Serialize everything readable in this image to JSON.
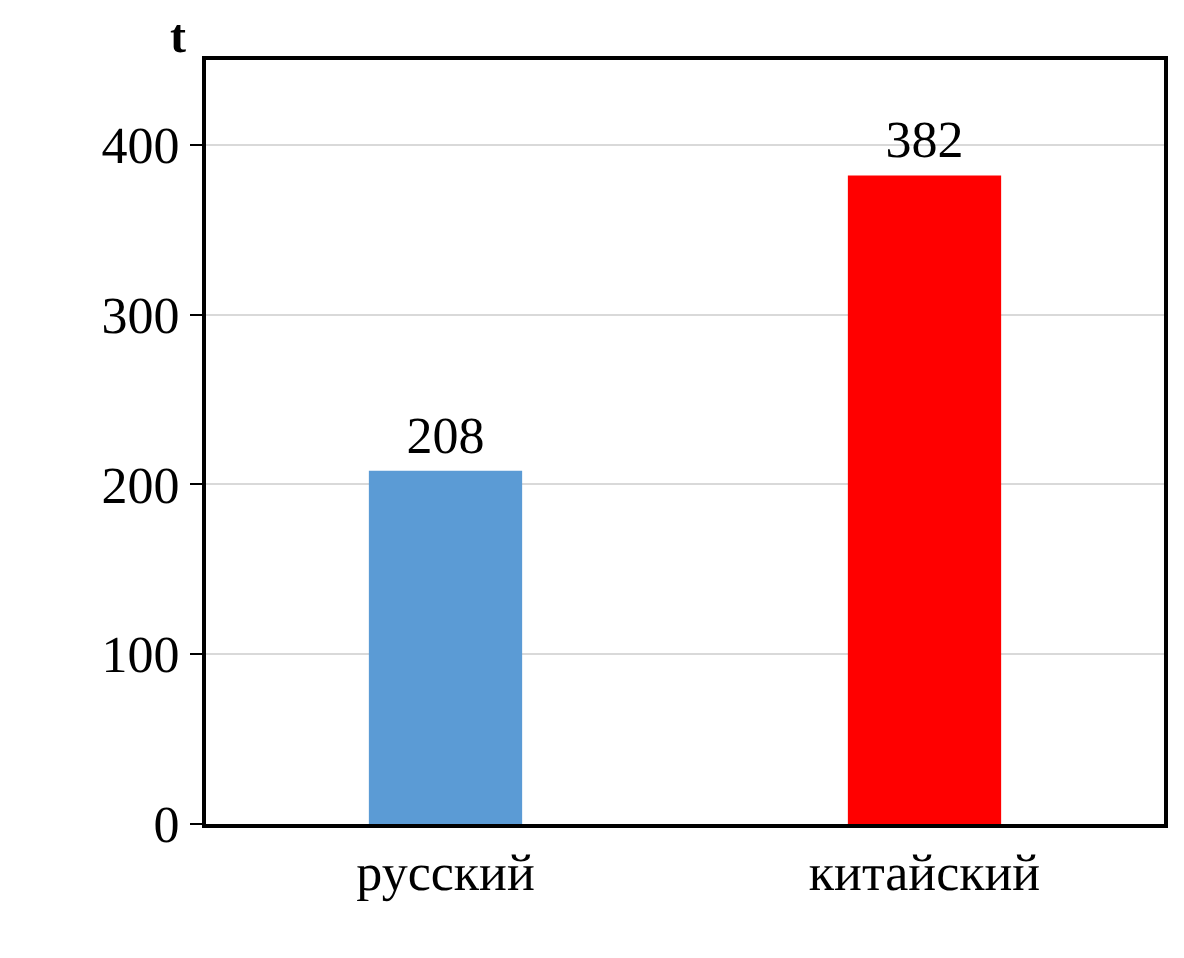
{
  "chart_data": {
    "type": "bar",
    "ylabel": "t",
    "categories": [
      "русский",
      "китайский"
    ],
    "values": [
      208,
      382
    ],
    "colors": [
      "#5b9bd5",
      "#ff0000"
    ],
    "ylim": [
      0,
      450
    ],
    "yticks": [
      0,
      100,
      200,
      300,
      400
    ],
    "grid": "y",
    "data_labels": true
  }
}
